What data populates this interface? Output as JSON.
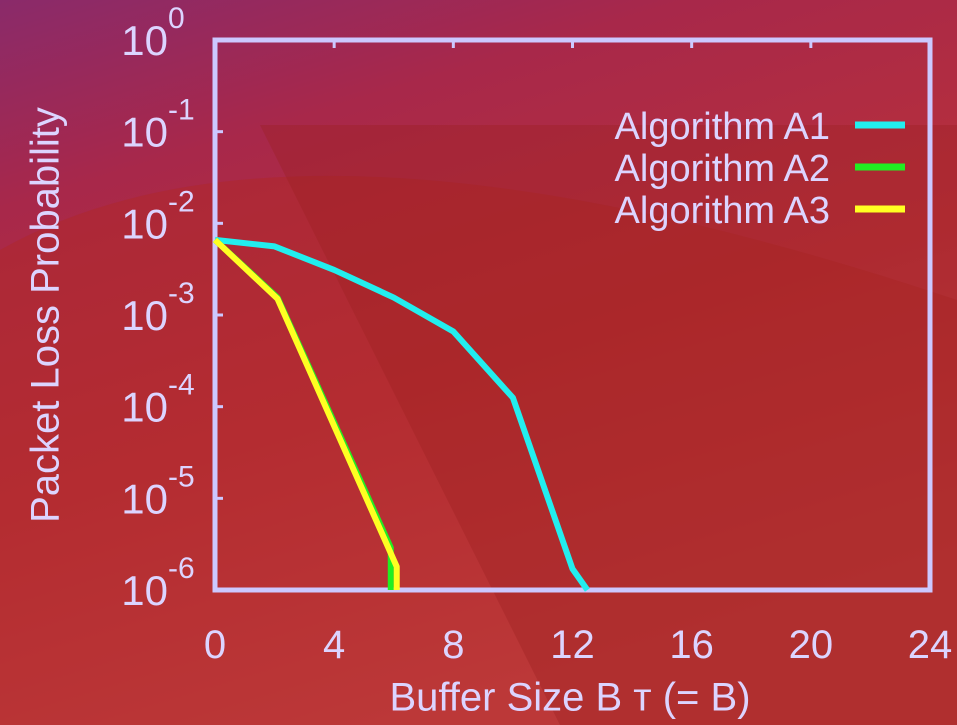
{
  "chart_data": {
    "type": "line",
    "xlabel": "Buffer Size B ᴛ (= B)",
    "ylabel": "Packet Loss Probability",
    "xlim": [
      0,
      24
    ],
    "xticks": [
      0,
      4,
      8,
      12,
      16,
      20,
      24
    ],
    "ylim": [
      1e-06,
      1
    ],
    "log_y": true,
    "yticks": [
      {
        "value": 1,
        "label": "10",
        "exponent": "0"
      },
      {
        "value": 0.1,
        "label": "10",
        "exponent": "-1"
      },
      {
        "value": 0.01,
        "label": "10",
        "exponent": "-2"
      },
      {
        "value": 0.001,
        "label": "10",
        "exponent": "-3"
      },
      {
        "value": 0.0001,
        "label": "10",
        "exponent": "-4"
      },
      {
        "value": 1e-05,
        "label": "10",
        "exponent": "-5"
      },
      {
        "value": 1e-06,
        "label": "10",
        "exponent": "-6"
      }
    ],
    "legend": "top-right",
    "series": [
      {
        "name": "Algorithm A1",
        "color": "#22eeee",
        "x": [
          0,
          2,
          4,
          6,
          8,
          10,
          12,
          12.5
        ],
        "values": [
          0.0066,
          0.0056,
          0.0031,
          0.00155,
          0.00066,
          0.000125,
          1.7e-06,
          1e-06
        ]
      },
      {
        "name": "Algorithm A2",
        "color": "#22ee22",
        "x": [
          0,
          2.1,
          5.9,
          5.9
        ],
        "values": [
          0.0066,
          0.00155,
          2.9e-06,
          1e-06
        ]
      },
      {
        "name": "Algorithm A3",
        "color": "#ffff22",
        "x": [
          0,
          2.1,
          6.1,
          6.1
        ],
        "values": [
          0.0066,
          0.0015,
          1.8e-06,
          1e-06
        ]
      }
    ]
  }
}
